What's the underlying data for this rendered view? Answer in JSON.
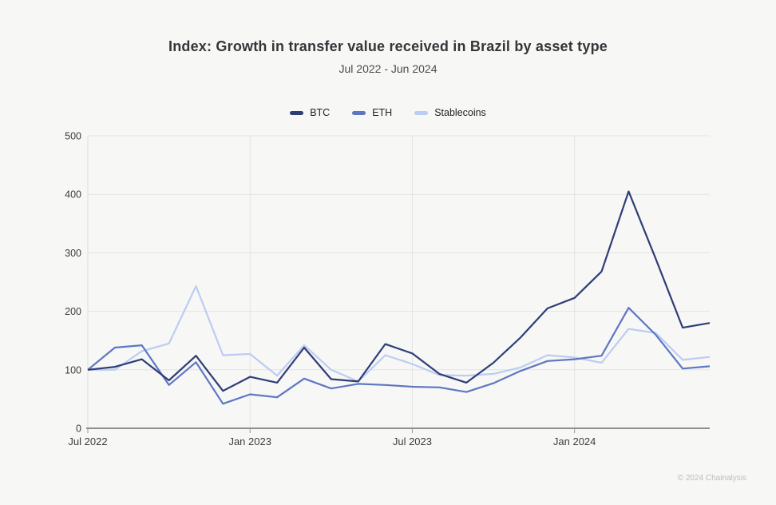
{
  "page": {
    "background": "#f7f7f5"
  },
  "chart_data": {
    "type": "line",
    "title": "Index: Growth in transfer value received in Brazil by asset type",
    "subtitle": "Jul 2022 - Jun 2024",
    "x": [
      "Jul 2022",
      "Aug 2022",
      "Sep 2022",
      "Oct 2022",
      "Nov 2022",
      "Dec 2022",
      "Jan 2023",
      "Feb 2023",
      "Mar 2023",
      "Apr 2023",
      "May 2023",
      "Jun 2023",
      "Jul 2023",
      "Aug 2023",
      "Sep 2023",
      "Oct 2023",
      "Nov 2023",
      "Dec 2023",
      "Jan 2024",
      "Feb 2024",
      "Mar 2024",
      "Apr 2024",
      "May 2024",
      "Jun 2024"
    ],
    "x_tick_marks": [
      {
        "index": 0,
        "label": "Jul 2022"
      },
      {
        "index": 6,
        "label": "Jan 2023"
      },
      {
        "index": 12,
        "label": "Jul 2023"
      },
      {
        "index": 18,
        "label": "Jan 2024"
      }
    ],
    "ylim": [
      0,
      500
    ],
    "y_ticks": [
      0,
      100,
      200,
      300,
      400,
      500
    ],
    "grid": {
      "horizontal": true,
      "vertical_at_x_ticks": true
    },
    "legend_position": "top",
    "series": [
      {
        "name": "BTC",
        "color": "#2e3d76",
        "values": [
          100,
          105,
          118,
          82,
          124,
          64,
          88,
          78,
          138,
          84,
          80,
          144,
          128,
          93,
          78,
          112,
          155,
          205,
          223,
          268,
          405,
          290,
          172,
          180
        ]
      },
      {
        "name": "ETH",
        "color": "#5d77c3",
        "values": [
          100,
          138,
          142,
          74,
          113,
          42,
          58,
          53,
          85,
          68,
          76,
          74,
          71,
          70,
          62,
          77,
          98,
          115,
          118,
          124,
          206,
          160,
          102,
          106
        ]
      },
      {
        "name": "Stablecoins",
        "color": "#bccdf2",
        "values": [
          100,
          100,
          132,
          145,
          243,
          125,
          127,
          90,
          142,
          100,
          80,
          125,
          110,
          91,
          90,
          93,
          104,
          125,
          121,
          112,
          170,
          163,
          117,
          122
        ]
      }
    ],
    "style": {
      "plot_left": 110,
      "plot_right": 889,
      "plot_top": 170,
      "plot_bottom": 536,
      "grid_color": "#e4e4e2",
      "axis_line_color": "#8f8f8f",
      "left_axis_color": "#dddddb",
      "tick_color": "#9a9a98",
      "tick_label_color": "#3c3c40",
      "line_width": 2.2
    }
  },
  "footer": {
    "copyright": "© 2024 Chainalysis"
  }
}
